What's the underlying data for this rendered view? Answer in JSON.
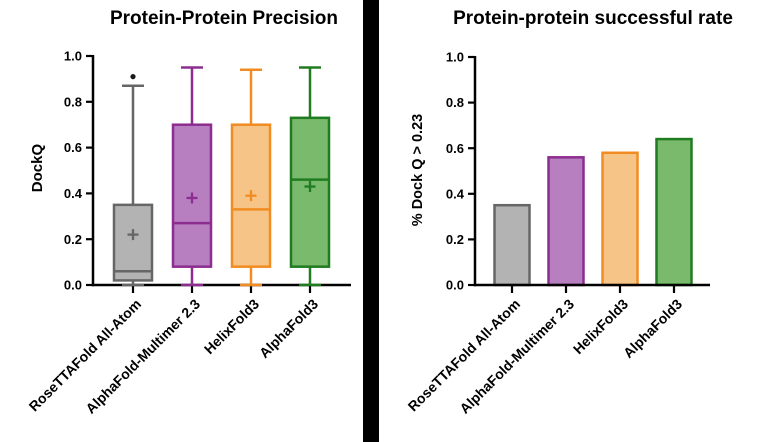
{
  "figure": {
    "background_color": "#ffffff",
    "divider_color": "#000000",
    "axis_color": "#000000",
    "text_color": "#000000",
    "outlier_color": "#1a1a1a"
  },
  "chart_data": [
    {
      "type": "box",
      "title": "Protein-Protein Precision",
      "ylabel": "DockQ",
      "ylim": [
        0.0,
        1.0
      ],
      "grid": false,
      "legend": "none",
      "yticks": [
        {
          "label": "0.0",
          "value": 0.0
        },
        {
          "label": "0.2",
          "value": 0.2
        },
        {
          "label": "0.4",
          "value": 0.4
        },
        {
          "label": "0.6",
          "value": 0.6
        },
        {
          "label": "0.8",
          "value": 0.8
        },
        {
          "label": "1.0",
          "value": 1.0
        }
      ],
      "categories": [
        "RoseTTAFold All-Atom",
        "AlphaFold-Multimer 2.3",
        "HelixFold3",
        "AlphaFold3"
      ],
      "boxes": [
        {
          "name": "RoseTTAFold All-Atom",
          "fill": "#b3b3b3",
          "stroke": "#666666",
          "whisker_low": 0.0,
          "q1": 0.02,
          "median": 0.06,
          "q3": 0.35,
          "whisker_high": 0.87,
          "mean": 0.22,
          "outliers": [
            0.91
          ]
        },
        {
          "name": "AlphaFold-Multimer 2.3",
          "fill": "#b77ec0",
          "stroke": "#8c2d8f",
          "whisker_low": 0.0,
          "q1": 0.08,
          "median": 0.27,
          "q3": 0.7,
          "whisker_high": 0.95,
          "mean": 0.38,
          "outliers": []
        },
        {
          "name": "HelixFold3",
          "fill": "#f7c488",
          "stroke": "#f08c21",
          "whisker_low": 0.0,
          "q1": 0.08,
          "median": 0.33,
          "q3": 0.7,
          "whisker_high": 0.94,
          "mean": 0.39,
          "outliers": []
        },
        {
          "name": "AlphaFold3",
          "fill": "#7aba6d",
          "stroke": "#207c20",
          "whisker_low": 0.0,
          "q1": 0.08,
          "median": 0.46,
          "q3": 0.73,
          "whisker_high": 0.95,
          "mean": 0.43,
          "outliers": []
        }
      ]
    },
    {
      "type": "bar",
      "title": "Protein-protein successful rate",
      "ylabel": "% Dock Q > 0.23",
      "ylim": [
        0.0,
        1.0
      ],
      "grid": false,
      "legend": "none",
      "yticks": [
        {
          "label": "0.0",
          "value": 0.0
        },
        {
          "label": "0.2",
          "value": 0.2
        },
        {
          "label": "0.4",
          "value": 0.4
        },
        {
          "label": "0.6",
          "value": 0.6
        },
        {
          "label": "0.8",
          "value": 0.8
        },
        {
          "label": "1.0",
          "value": 1.0
        }
      ],
      "categories": [
        "RoseTTAFold All-Atom",
        "AlphaFold-Multimer 2.3",
        "HelixFold3",
        "AlphaFold3"
      ],
      "bars": [
        {
          "name": "RoseTTAFold All-Atom",
          "value": 0.35,
          "fill": "#b3b3b3",
          "stroke": "#666666"
        },
        {
          "name": "AlphaFold-Multimer 2.3",
          "value": 0.56,
          "fill": "#b77ec0",
          "stroke": "#8c2d8f"
        },
        {
          "name": "HelixFold3",
          "value": 0.58,
          "fill": "#f7c488",
          "stroke": "#f08c21"
        },
        {
          "name": "AlphaFold3",
          "value": 0.64,
          "fill": "#7aba6d",
          "stroke": "#207c20"
        }
      ]
    }
  ]
}
